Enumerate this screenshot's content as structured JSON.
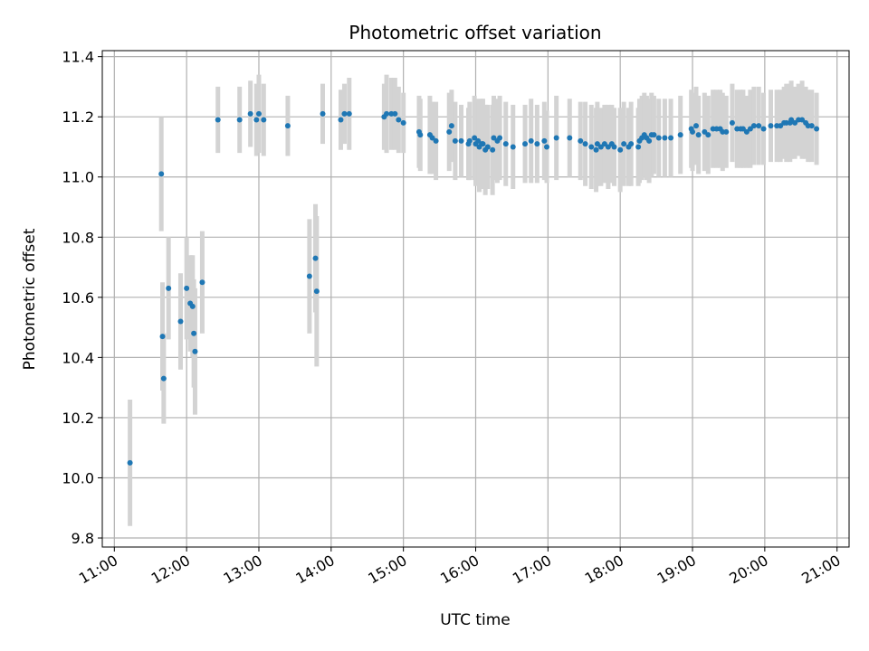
{
  "chart_data": {
    "type": "scatter",
    "title": "Photometric offset variation",
    "xlabel": "UTC time",
    "ylabel": "Photometric offset",
    "x_is_time": true,
    "xlim": [
      "10:50",
      "21:10"
    ],
    "ylim": [
      9.77,
      11.42
    ],
    "x_ticks": [
      "11:00",
      "12:00",
      "13:00",
      "14:00",
      "15:00",
      "16:00",
      "17:00",
      "18:00",
      "19:00",
      "20:00",
      "21:00"
    ],
    "y_ticks": [
      9.8,
      10.0,
      10.2,
      10.4,
      10.6,
      10.8,
      11.0,
      11.2,
      11.4
    ],
    "y_tick_labels": [
      "9.8",
      "10.0",
      "10.2",
      "10.4",
      "10.6",
      "10.8",
      "11.0",
      "11.2",
      "11.4"
    ],
    "grid": true,
    "colors": {
      "points": "#1f77b4",
      "errorbars": "#d3d3d3",
      "grid": "#b0b0b0"
    },
    "series": [
      {
        "x": [
          "11:13",
          "11:39",
          "11:40",
          "11:41",
          "11:45",
          "11:55",
          "12:00",
          "12:03",
          "12:05",
          "12:06",
          "12:07",
          "12:13",
          "12:26",
          "12:44",
          "12:53",
          "12:58",
          "13:00",
          "13:04",
          "13:24",
          "13:42",
          "13:47",
          "13:48",
          "13:53",
          "14:08",
          "14:11",
          "14:15",
          "14:44",
          "14:46",
          "14:50",
          "14:53",
          "14:56",
          "15:00",
          "15:13",
          "15:14",
          "15:22",
          "15:24",
          "15:27",
          "15:38",
          "15:40",
          "15:43",
          "15:48",
          "15:54",
          "15:55",
          "15:59",
          "16:00",
          "16:02",
          "16:03",
          "16:05",
          "16:06",
          "16:08",
          "16:10",
          "16:14",
          "16:15",
          "16:18",
          "16:20",
          "16:25",
          "16:31",
          "16:41",
          "16:46",
          "16:51",
          "16:57",
          "16:59",
          "17:07",
          "17:18",
          "17:27",
          "17:31",
          "17:36",
          "17:40",
          "17:41",
          "17:44",
          "17:47",
          "17:50",
          "17:53",
          "17:55",
          "18:00",
          "18:03",
          "18:07",
          "18:09",
          "18:15",
          "18:16",
          "18:18",
          "18:20",
          "18:22",
          "18:24",
          "18:26",
          "18:28",
          "18:32",
          "18:37",
          "18:42",
          "18:50",
          "18:59",
          "19:00",
          "19:03",
          "19:05",
          "19:10",
          "19:13",
          "19:17",
          "19:20",
          "19:23",
          "19:25",
          "19:28",
          "19:33",
          "19:37",
          "19:40",
          "19:42",
          "19:45",
          "19:48",
          "19:51",
          "19:55",
          "19:59",
          "20:05",
          "20:10",
          "20:13",
          "20:16",
          "20:18",
          "20:21",
          "20:22",
          "20:25",
          "20:28",
          "20:31",
          "20:34",
          "20:36",
          "20:39",
          "20:43"
        ],
        "y": [
          10.05,
          11.01,
          10.47,
          10.33,
          10.63,
          10.52,
          10.63,
          10.58,
          10.57,
          10.48,
          10.42,
          10.65,
          11.19,
          11.19,
          11.21,
          11.19,
          11.21,
          11.19,
          11.17,
          10.67,
          10.73,
          10.62,
          11.21,
          11.19,
          11.21,
          11.21,
          11.2,
          11.21,
          11.21,
          11.21,
          11.19,
          11.18,
          11.15,
          11.14,
          11.14,
          11.13,
          11.12,
          11.15,
          11.17,
          11.12,
          11.12,
          11.11,
          11.12,
          11.13,
          11.11,
          11.12,
          11.1,
          11.11,
          11.11,
          11.09,
          11.1,
          11.09,
          11.13,
          11.12,
          11.13,
          11.11,
          11.1,
          11.11,
          11.12,
          11.11,
          11.12,
          11.1,
          11.13,
          11.13,
          11.12,
          11.11,
          11.1,
          11.09,
          11.11,
          11.1,
          11.11,
          11.1,
          11.11,
          11.1,
          11.09,
          11.11,
          11.1,
          11.11,
          11.1,
          11.12,
          11.13,
          11.14,
          11.13,
          11.12,
          11.14,
          11.14,
          11.13,
          11.13,
          11.13,
          11.14,
          11.16,
          11.15,
          11.17,
          11.14,
          11.15,
          11.14,
          11.16,
          11.16,
          11.16,
          11.15,
          11.15,
          11.18,
          11.16,
          11.16,
          11.16,
          11.15,
          11.16,
          11.17,
          11.17,
          11.16,
          11.17,
          11.17,
          11.17,
          11.18,
          11.18,
          11.18,
          11.19,
          11.18,
          11.19,
          11.19,
          11.18,
          11.17,
          11.17,
          11.16
        ],
        "err": [
          0.21,
          0.19,
          0.18,
          0.15,
          0.17,
          0.16,
          0.17,
          0.16,
          0.17,
          0.18,
          0.21,
          0.17,
          0.11,
          0.11,
          0.11,
          0.12,
          0.13,
          0.12,
          0.1,
          0.19,
          0.18,
          0.25,
          0.1,
          0.1,
          0.1,
          0.12,
          0.11,
          0.13,
          0.12,
          0.12,
          0.11,
          0.1,
          0.12,
          0.12,
          0.13,
          0.12,
          0.13,
          0.13,
          0.12,
          0.13,
          0.12,
          0.12,
          0.13,
          0.14,
          0.14,
          0.14,
          0.15,
          0.15,
          0.15,
          0.15,
          0.14,
          0.15,
          0.14,
          0.14,
          0.14,
          0.14,
          0.14,
          0.13,
          0.14,
          0.13,
          0.13,
          0.12,
          0.14,
          0.13,
          0.13,
          0.14,
          0.14,
          0.14,
          0.14,
          0.13,
          0.13,
          0.14,
          0.13,
          0.13,
          0.14,
          0.14,
          0.13,
          0.14,
          0.13,
          0.14,
          0.14,
          0.14,
          0.14,
          0.14,
          0.14,
          0.13,
          0.13,
          0.13,
          0.13,
          0.13,
          0.13,
          0.13,
          0.13,
          0.13,
          0.13,
          0.13,
          0.13,
          0.13,
          0.13,
          0.13,
          0.12,
          0.13,
          0.13,
          0.13,
          0.13,
          0.12,
          0.13,
          0.13,
          0.13,
          0.12,
          0.12,
          0.12,
          0.12,
          0.12,
          0.13,
          0.13,
          0.13,
          0.12,
          0.12,
          0.13,
          0.12,
          0.12,
          0.12,
          0.12
        ]
      }
    ]
  }
}
